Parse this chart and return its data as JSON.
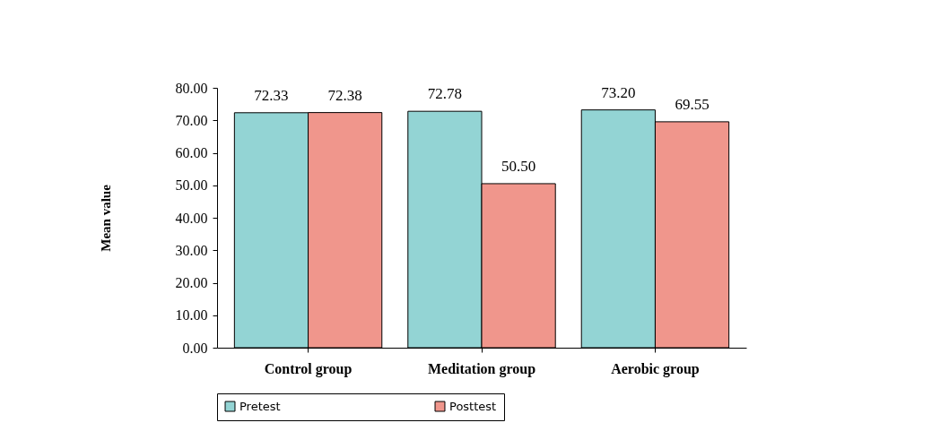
{
  "chart_data": {
    "type": "bar",
    "ylabel": "Mean value",
    "categories": [
      "Control group",
      "Meditation group",
      "Aerobic group"
    ],
    "series": [
      {
        "name": "Pretest",
        "color": "#93d4d4",
        "values": [
          72.33,
          72.78,
          73.2
        ],
        "value_labels": [
          "72.33",
          "72.78",
          "73.20"
        ]
      },
      {
        "name": "Posttest",
        "color": "#f0968c",
        "values": [
          72.38,
          50.5,
          69.55
        ],
        "value_labels": [
          "72.38",
          "50.50",
          "69.55"
        ]
      }
    ],
    "ylim": [
      0,
      80
    ],
    "yticks": [
      {
        "value": 0,
        "label": "0.00"
      },
      {
        "value": 10,
        "label": "10.00"
      },
      {
        "value": 20,
        "label": "20.00"
      },
      {
        "value": 30,
        "label": "30.00"
      },
      {
        "value": 40,
        "label": "40.00"
      },
      {
        "value": 50,
        "label": "50.00"
      },
      {
        "value": 60,
        "label": "60.00"
      },
      {
        "value": 70,
        "label": "70.00"
      },
      {
        "value": 80,
        "label": "80.00"
      }
    ],
    "grid": false,
    "legend": "bottom"
  }
}
